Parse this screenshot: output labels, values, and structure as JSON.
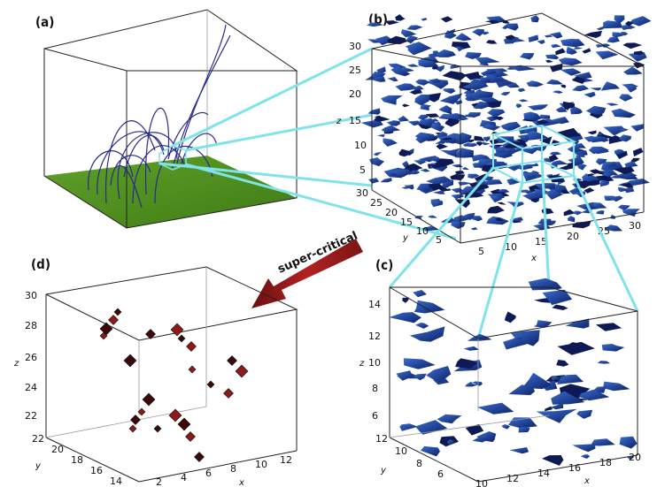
{
  "figure": {
    "panels": [
      {
        "id": "a",
        "label": "(a)"
      },
      {
        "id": "b",
        "label": "(b)",
        "z_ticks": [
          "30",
          "25",
          "20",
          "15",
          "10",
          "5"
        ],
        "y_ticks": [
          "30",
          "25",
          "20",
          "15",
          "10",
          "5"
        ],
        "x_ticks": [
          "5",
          "10",
          "15",
          "20",
          "25",
          "30"
        ],
        "z_label": "z",
        "y_label": "y",
        "x_label": "x"
      },
      {
        "id": "c",
        "label": "(c)",
        "z_ticks": [
          "14",
          "12",
          "10",
          "8",
          "6"
        ],
        "y_ticks": [
          "12",
          "10",
          "8",
          "6"
        ],
        "x_ticks": [
          "10",
          "12",
          "14",
          "16",
          "18",
          "20"
        ],
        "z_label": "z",
        "y_label": "y",
        "x_label": "x"
      },
      {
        "id": "d",
        "label": "(d)",
        "z_ticks": [
          "30",
          "28",
          "26",
          "24",
          "22"
        ],
        "y_ticks": [
          "22",
          "20",
          "18",
          "16",
          "14"
        ],
        "x_ticks": [
          "2",
          "4",
          "6",
          "8",
          "10",
          "12"
        ],
        "z_label": "z",
        "y_label": "y",
        "x_label": "x"
      }
    ],
    "arrow_label": "super-critical",
    "colors": {
      "field_lines": "#2a2a8a",
      "photosphere": "#4f8d1c",
      "isosurface_blue": "#1f3fa0",
      "critical_red": "#8b1a1a",
      "zoom_lines": "#7fe3ea",
      "arrow": "#9a1b1b"
    }
  }
}
